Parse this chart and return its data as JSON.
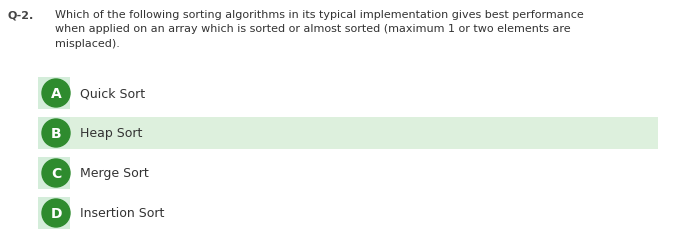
{
  "bg_color": "#ffffff",
  "question_label": "Q-2.",
  "question_text": "Which of the following sorting algorithms in its typical implementation gives best performance\nwhen applied on an array which is sorted or almost sorted (maximum 1 or two elements are\nmisplaced).",
  "options": [
    {
      "letter": "A",
      "text": "Quick Sort",
      "highlight": false
    },
    {
      "letter": "B",
      "text": "Heap Sort",
      "highlight": true
    },
    {
      "letter": "C",
      "text": "Merge Sort",
      "highlight": false
    },
    {
      "letter": "D",
      "text": "Insertion Sort",
      "highlight": false
    }
  ],
  "circle_color": "#2e8b2e",
  "circle_text_color": "#ffffff",
  "highlight_color": "#ddf0dd",
  "circle_bg_color": "#d4edda",
  "text_color": "#333333",
  "label_color": "#444444",
  "fig_width": 6.86,
  "fig_height": 2.53,
  "dpi": 100
}
